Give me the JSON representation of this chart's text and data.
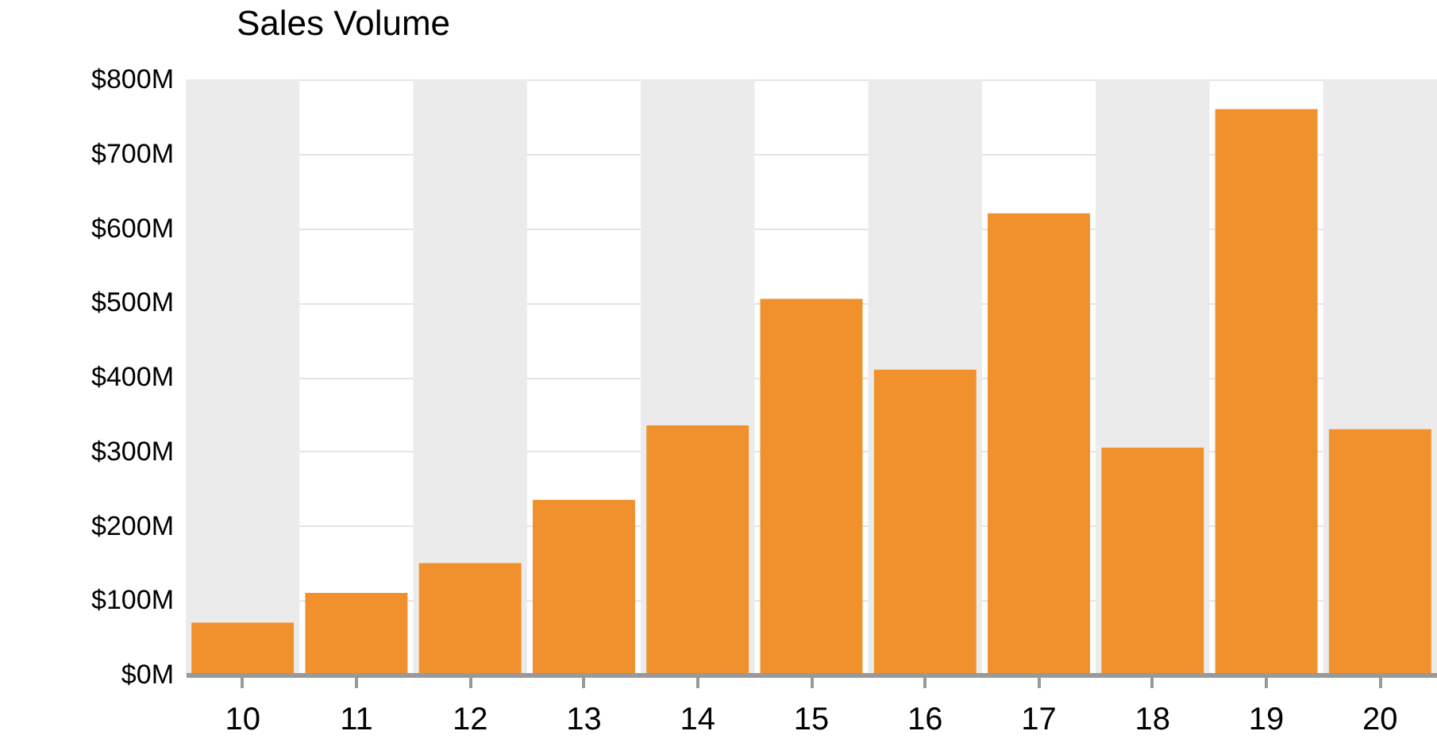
{
  "chart_data": {
    "type": "bar",
    "title": "Sales Volume",
    "categories": [
      "10",
      "11",
      "12",
      "13",
      "14",
      "15",
      "16",
      "17",
      "18",
      "19",
      "20"
    ],
    "values": [
      70,
      110,
      150,
      235,
      335,
      505,
      410,
      620,
      305,
      760,
      330
    ],
    "color": "#f0912d",
    "ylim": [
      0,
      800
    ],
    "yticks": [
      {
        "value": 0,
        "label": "$0M"
      },
      {
        "value": 100,
        "label": "$100M"
      },
      {
        "value": 200,
        "label": "$200M"
      },
      {
        "value": 300,
        "label": "$300M"
      },
      {
        "value": 400,
        "label": "$400M"
      },
      {
        "value": 500,
        "label": "$500M"
      },
      {
        "value": 600,
        "label": "$600M"
      },
      {
        "value": 700,
        "label": "$700M"
      },
      {
        "value": 800,
        "label": "$800M"
      }
    ],
    "grid": "y",
    "bands": [
      {
        "axis": "x",
        "from": "10",
        "to": "10",
        "color": "#ebebeb"
      },
      {
        "axis": "x",
        "from": "12",
        "to": "12",
        "color": "#ebebeb"
      },
      {
        "axis": "x",
        "from": "14",
        "to": "14",
        "color": "#ebebeb"
      },
      {
        "axis": "x",
        "from": "16",
        "to": "16",
        "color": "#ebebeb"
      },
      {
        "axis": "x",
        "from": "18",
        "to": "18",
        "color": "#ebebeb"
      },
      {
        "axis": "x",
        "from": "20",
        "to": "20",
        "color": "#ebebeb"
      }
    ]
  }
}
